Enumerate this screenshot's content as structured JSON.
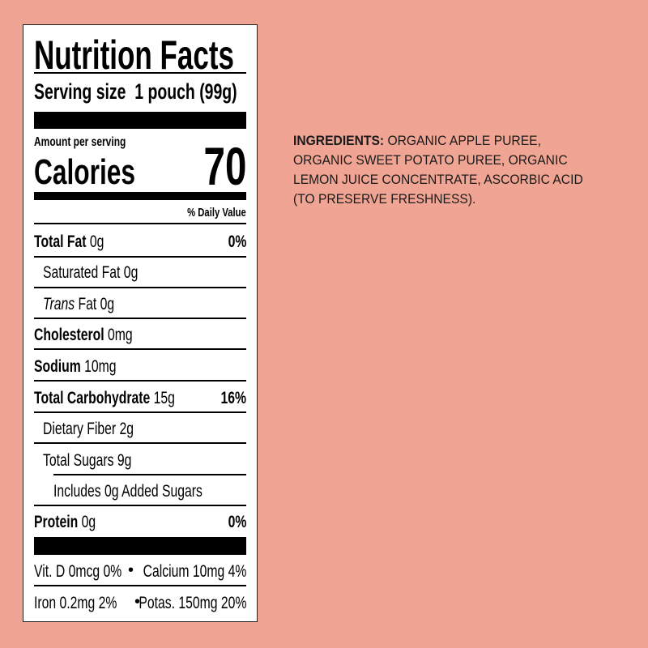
{
  "nutrition": {
    "title": "Nutrition Facts",
    "serving_size_label": "Serving size",
    "serving_size_value": "1 pouch (99g)",
    "amount_per_serving": "Amount per serving",
    "calories_label": "Calories",
    "calories_value": "70",
    "daily_value_header": "% Daily Value",
    "rows": [
      {
        "name": "Total Fat",
        "amount": "0g",
        "dv": "0%"
      },
      {
        "name": "Saturated Fat 0g"
      },
      {
        "name": "Trans",
        "amount": "Fat 0g"
      },
      {
        "name": "Cholesterol",
        "amount": "0mg"
      },
      {
        "name": "Sodium",
        "amount": "10mg"
      },
      {
        "name": "Total Carbohydrate",
        "amount": "15g",
        "dv": "16%"
      },
      {
        "name": "Dietary Fiber 2g"
      },
      {
        "name": "Total Sugars 9g"
      },
      {
        "name": "Includes 0g Added Sugars"
      },
      {
        "name": "Protein",
        "amount": "0g",
        "dv": "0%"
      }
    ],
    "vitamins": [
      {
        "left": "Vit. D 0mcg 0%",
        "right": "Calcium 10mg 4%"
      },
      {
        "left": "Iron 0.2mg 2%",
        "right": "Potas. 150mg 20%"
      }
    ]
  },
  "ingredients": {
    "label": "INGREDIENTS:",
    "text": "ORGANIC APPLE PUREE, ORGANIC SWEET POTATO PUREE, ORGANIC LEMON JUICE CONCENTRATE, ASCORBIC ACID (TO PRESERVE FRESHNESS)."
  },
  "colors": {
    "background": "#f0a594",
    "label": "#ffffff",
    "text": "#000000"
  }
}
